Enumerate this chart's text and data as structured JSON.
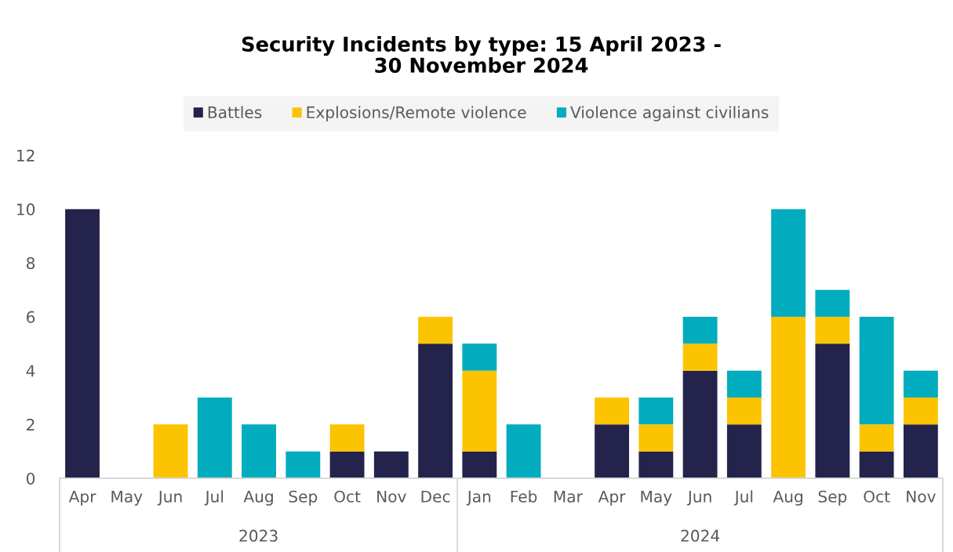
{
  "chart_data": {
    "type": "bar",
    "title": "Security Incidents by type: 15 April 2023 -\n30 November 2024",
    "x": [
      "2023-04",
      "2023-05",
      "2023-06",
      "2023-07",
      "2023-08",
      "2023-09",
      "2023-10",
      "2023-11",
      "2023-12",
      "2024-01",
      "2024-02",
      "2024-03",
      "2024-04",
      "2024-05",
      "2024-06",
      "2024-07",
      "2024-08",
      "2024-09",
      "2024-10",
      "2024-11"
    ],
    "xlim": [
      "2023-03-16",
      "2024-11-16"
    ],
    "xticks": [
      {
        "value": "2023-04",
        "label": "Apr"
      },
      {
        "value": "2023-05",
        "label": "May"
      },
      {
        "value": "2023-06",
        "label": "Jun"
      },
      {
        "value": "2023-07",
        "label": "Jul"
      },
      {
        "value": "2023-08",
        "label": "Aug"
      },
      {
        "value": "2023-09",
        "label": "Sep"
      },
      {
        "value": "2023-10",
        "label": "Oct"
      },
      {
        "value": "2023-11",
        "label": "Nov"
      },
      {
        "value": "2023-12",
        "label": "Dec"
      },
      {
        "value": "2024-01",
        "label": "Jan"
      },
      {
        "value": "2024-02",
        "label": "Feb"
      },
      {
        "value": "2024-03",
        "label": "Mar"
      },
      {
        "value": "2024-04",
        "label": "Apr"
      },
      {
        "value": "2024-05",
        "label": "May"
      },
      {
        "value": "2024-06",
        "label": "Jun"
      },
      {
        "value": "2024-07",
        "label": "Jul"
      },
      {
        "value": "2024-08",
        "label": "Aug"
      },
      {
        "value": "2024-09",
        "label": "Sep"
      },
      {
        "value": "2024-10",
        "label": "Oct"
      },
      {
        "value": "2024-11",
        "label": "Nov"
      }
    ],
    "series": [
      {
        "name": "Battles",
        "color": "#24234b",
        "values": [
          10,
          0,
          0,
          0,
          0,
          0,
          1,
          1,
          5,
          1,
          0,
          0,
          2,
          1,
          4,
          2,
          0,
          5,
          1,
          2
        ]
      },
      {
        "name": "Explosions/Remote violence",
        "color": "#fcc400",
        "values": [
          0,
          0,
          2,
          0,
          0,
          0,
          1,
          0,
          1,
          3,
          0,
          0,
          1,
          1,
          1,
          1,
          6,
          1,
          1,
          1
        ]
      },
      {
        "name": "Violence against civilians",
        "color": "#00acbd",
        "values": [
          0,
          0,
          0,
          3,
          2,
          1,
          0,
          0,
          0,
          1,
          2,
          0,
          0,
          1,
          1,
          1,
          4,
          1,
          4,
          1
        ]
      }
    ],
    "stacked": true,
    "ylim": [
      0,
      12
    ],
    "yticks": [
      0,
      2,
      4,
      6,
      8,
      10,
      12
    ],
    "legend": "top",
    "annotations": [
      "2023",
      "2024"
    ]
  }
}
